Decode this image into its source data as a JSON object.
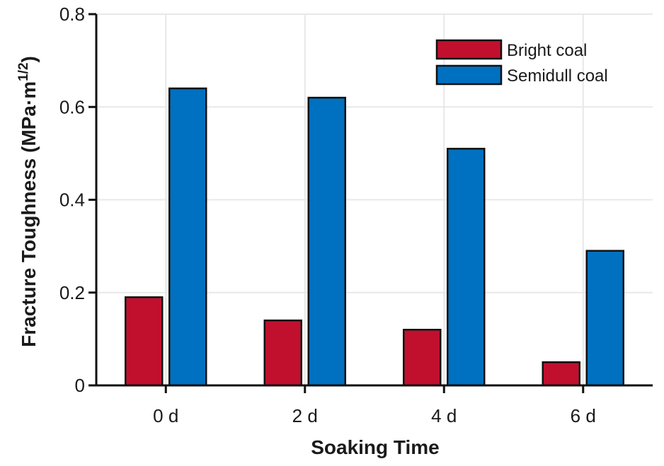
{
  "chart_data": {
    "type": "bar",
    "categories": [
      "0 d",
      "2 d",
      "4 d",
      "6 d"
    ],
    "series": [
      {
        "name": "Bright coal",
        "values": [
          0.19,
          0.14,
          0.12,
          0.05
        ],
        "color": "#c0102e"
      },
      {
        "name": "Semidull coal",
        "values": [
          0.64,
          0.62,
          0.51,
          0.29
        ],
        "color": "#0070c0"
      }
    ],
    "xlabel": "Soaking Time",
    "ylabel": "Fracture Toughness (MPa·m",
    "ylabel_superscript": "1/2",
    "ylabel_close": ")",
    "ylim": [
      0,
      0.8
    ],
    "yticks": [
      0,
      0.2,
      0.4,
      0.6,
      0.8
    ],
    "ytick_labels": [
      "0",
      "0.2",
      "0.4",
      "0.6",
      "0.8"
    ],
    "grid": true,
    "legend_position": "top-right"
  }
}
